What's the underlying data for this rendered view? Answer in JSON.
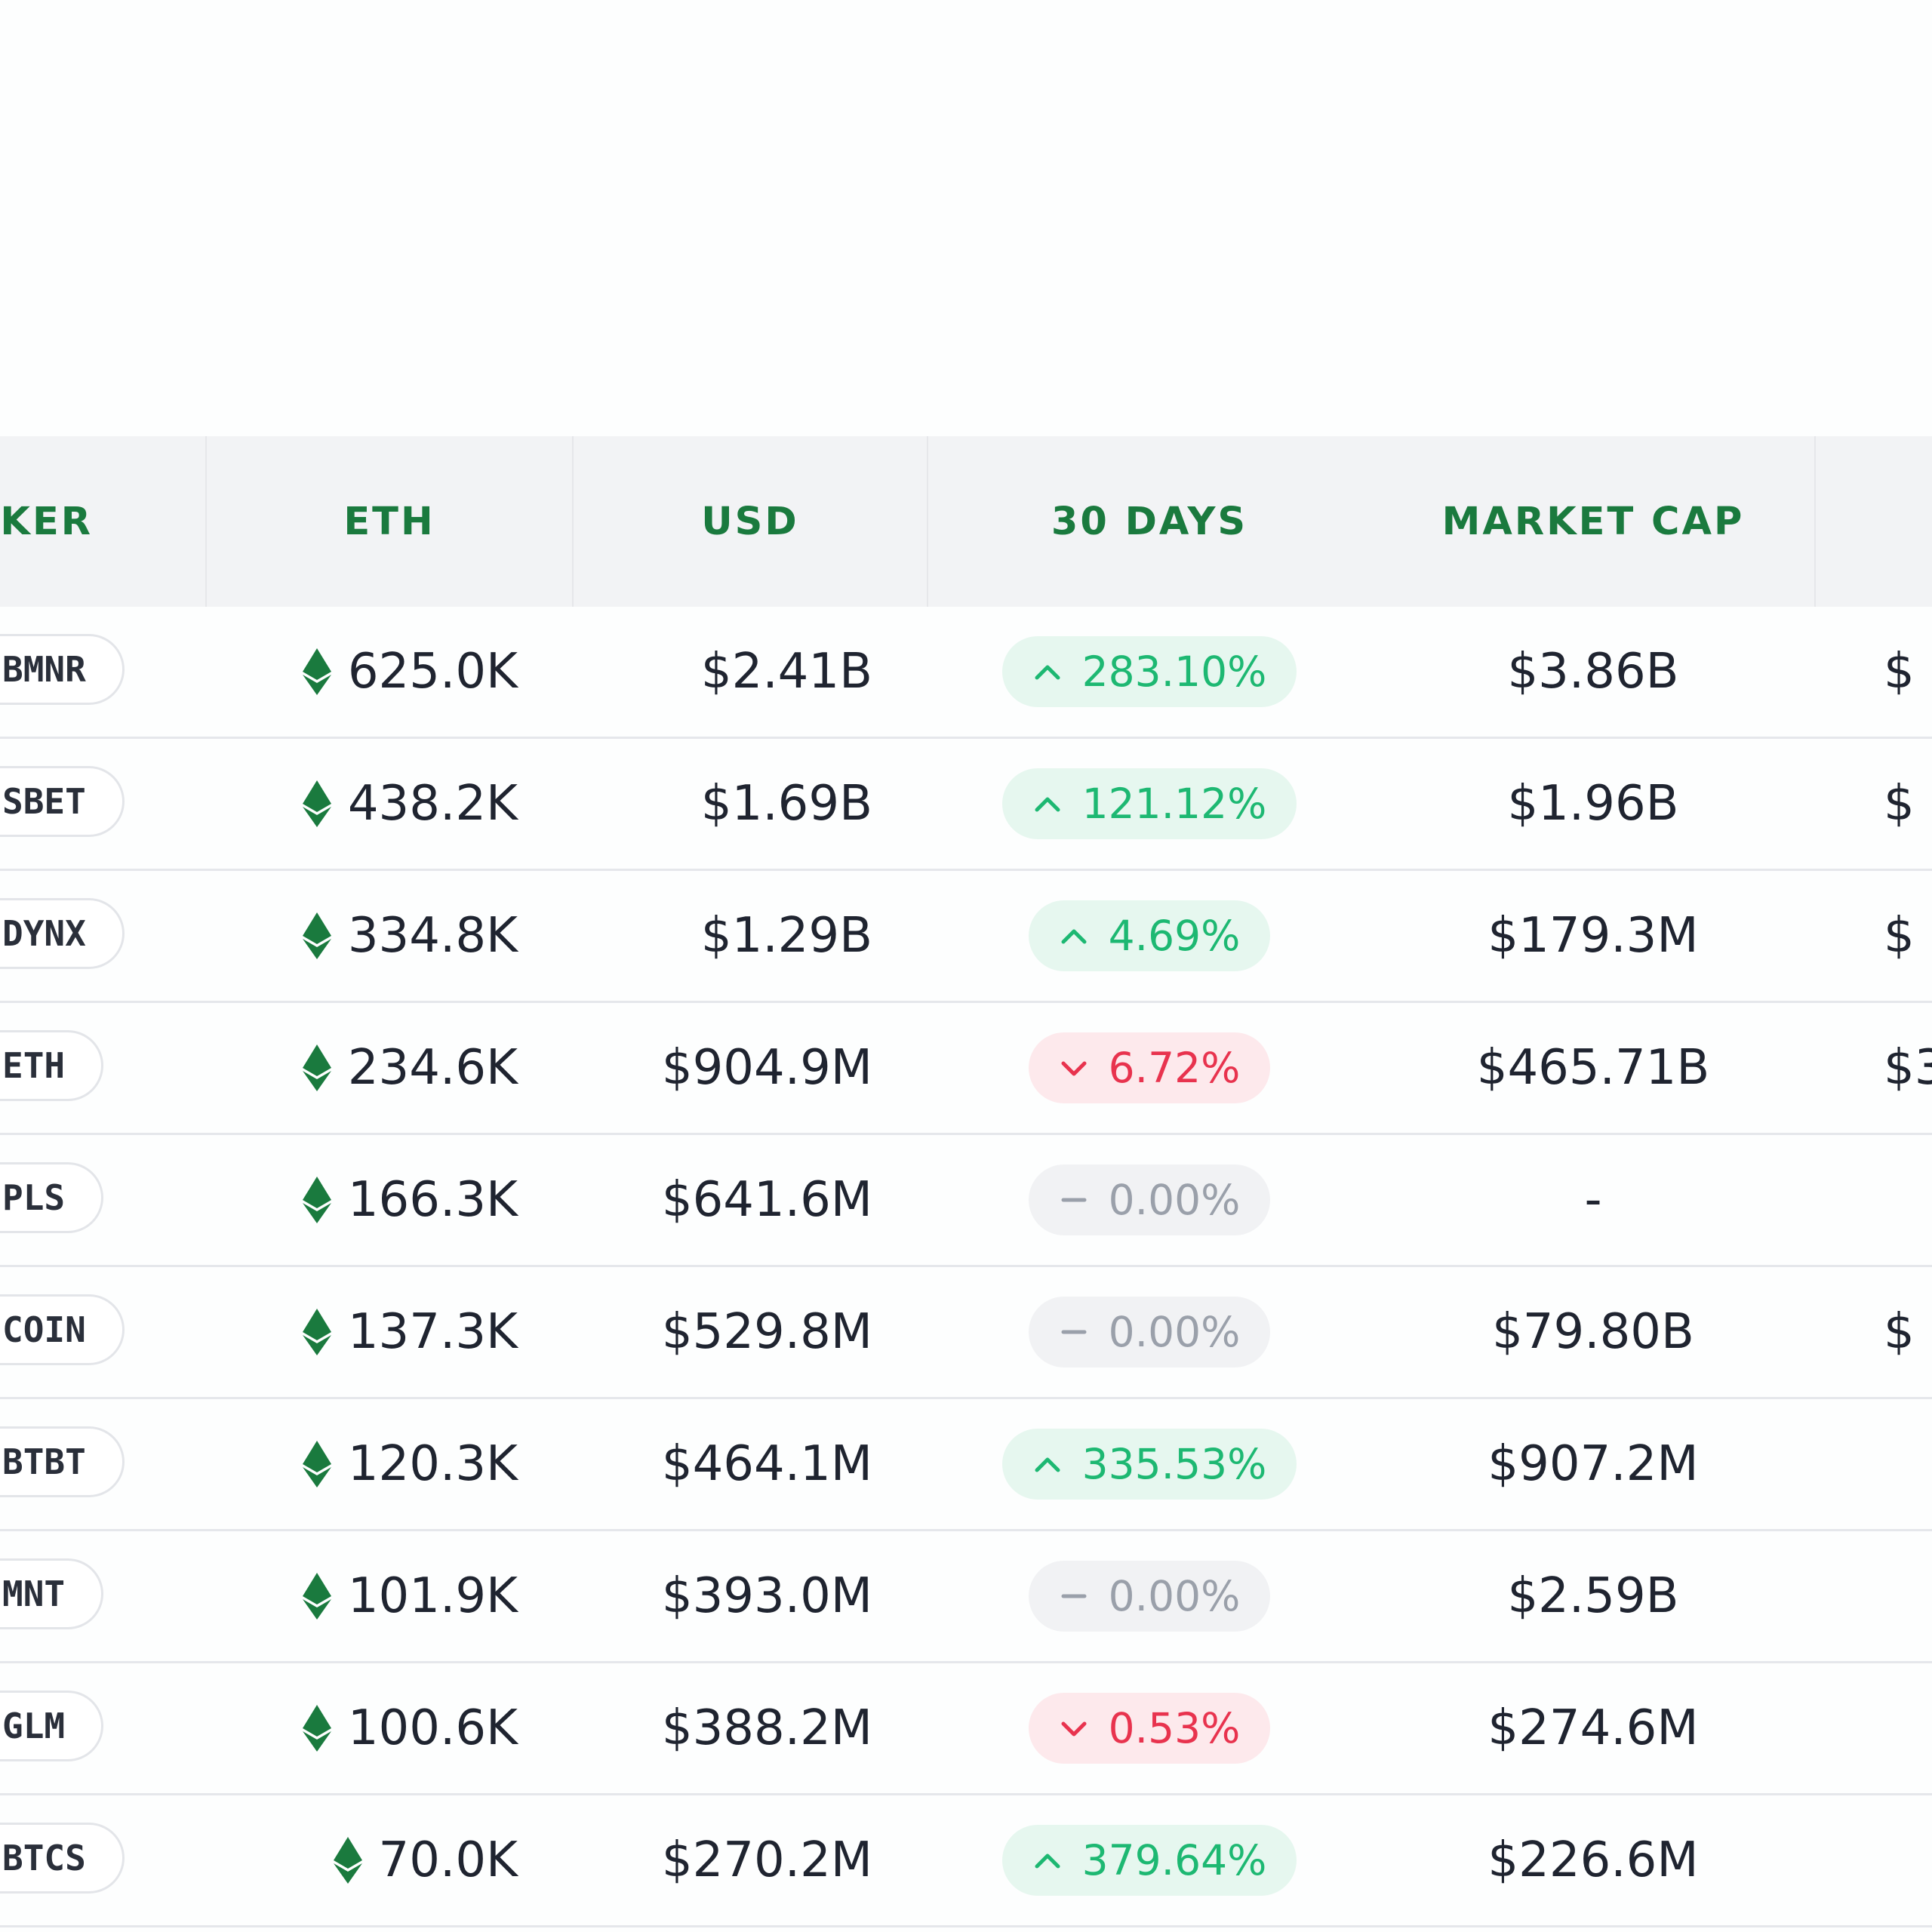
{
  "colors": {
    "header_text": "#1a7a3e",
    "header_bg": "#f2f3f5",
    "positive": "#1db872",
    "negative": "#e8334e",
    "neutral": "#9aa0aa",
    "eth_icon": "#1a7a3e"
  },
  "header": {
    "ticker": "CKER",
    "eth": "ETH",
    "usd": "USD",
    "days30": "30 DAYS",
    "market_cap": "MARKET CAP"
  },
  "rows": [
    {
      "ticker": "BMNR",
      "eth": "625.0K",
      "usd": "$2.41B",
      "change": "283.10%",
      "trend": "up",
      "market_cap": "$3.86B",
      "extra": "$"
    },
    {
      "ticker": "SBET",
      "eth": "438.2K",
      "usd": "$1.69B",
      "change": "121.12%",
      "trend": "up",
      "market_cap": "$1.96B",
      "extra": "$"
    },
    {
      "ticker": "DYNX",
      "eth": "334.8K",
      "usd": "$1.29B",
      "change": "4.69%",
      "trend": "up",
      "market_cap": "$179.3M",
      "extra": "$"
    },
    {
      "ticker": "ETH",
      "eth": "234.6K",
      "usd": "$904.9M",
      "change": "6.72%",
      "trend": "down",
      "market_cap": "$465.71B",
      "extra": "$3"
    },
    {
      "ticker": "PLS",
      "eth": "166.3K",
      "usd": "$641.6M",
      "change": "0.00%",
      "trend": "flat",
      "market_cap": "-",
      "extra": ""
    },
    {
      "ticker": "COIN",
      "eth": "137.3K",
      "usd": "$529.8M",
      "change": "0.00%",
      "trend": "flat",
      "market_cap": "$79.80B",
      "extra": "$"
    },
    {
      "ticker": "BTBT",
      "eth": "120.3K",
      "usd": "$464.1M",
      "change": "335.53%",
      "trend": "up",
      "market_cap": "$907.2M",
      "extra": ""
    },
    {
      "ticker": "MNT",
      "eth": "101.9K",
      "usd": "$393.0M",
      "change": "0.00%",
      "trend": "flat",
      "market_cap": "$2.59B",
      "extra": ""
    },
    {
      "ticker": "GLM",
      "eth": "100.6K",
      "usd": "$388.2M",
      "change": "0.53%",
      "trend": "down",
      "market_cap": "$274.6M",
      "extra": ""
    },
    {
      "ticker": "BTCS",
      "eth": "70.0K",
      "usd": "$270.2M",
      "change": "379.64%",
      "trend": "up",
      "market_cap": "$226.6M",
      "extra": ""
    }
  ]
}
